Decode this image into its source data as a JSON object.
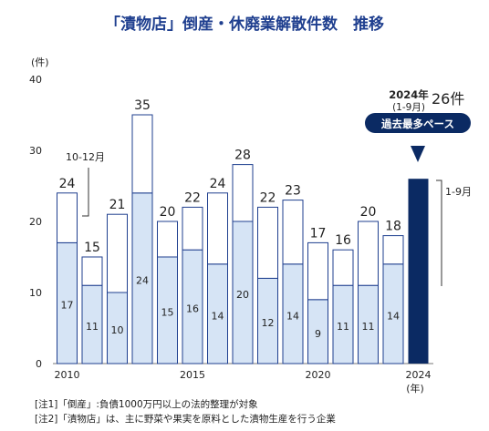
{
  "title": "「漬物店」倒産・休廃業解散件数　推移",
  "chart_data": {
    "type": "bar",
    "categories": [
      "2010",
      "2011",
      "2012",
      "2013",
      "2014",
      "2015",
      "2016",
      "2017",
      "2018",
      "2019",
      "2020",
      "2021",
      "2022",
      "2023",
      "2024"
    ],
    "x_tick_labels": [
      "2010",
      "2015",
      "2020",
      "2024"
    ],
    "x_unit": "(年)",
    "y_unit": "(件)",
    "ylim": [
      0,
      40
    ],
    "y_ticks": [
      0,
      10,
      20,
      30,
      40
    ],
    "series": [
      {
        "name": "倒産",
        "color": "#d6e4f5",
        "values": [
          17,
          11,
          10,
          24,
          15,
          16,
          14,
          20,
          12,
          14,
          9,
          11,
          11,
          14,
          null
        ]
      },
      {
        "name": "休廃業解散",
        "color": "#ffffff",
        "values": [
          7,
          4,
          11,
          11,
          5,
          6,
          10,
          8,
          10,
          9,
          8,
          5,
          9,
          4,
          null
        ]
      }
    ],
    "totals": [
      24,
      15,
      21,
      35,
      20,
      22,
      24,
      28,
      22,
      23,
      17,
      16,
      20,
      18,
      26
    ],
    "bar_2024": {
      "value": 26,
      "color": "#0b2a63"
    },
    "annotations": {
      "note_2010": "10-12月",
      "note_2024_period": "1-9月",
      "header_2024": "2024年",
      "header_2024_sub": "(1-9月)",
      "value_2024": "26件",
      "badge": "過去最多ペース"
    },
    "grid": false
  },
  "notes": [
    "[注1]「倒産」:負債1000万円以上の法的整理が対象",
    "[注2]「漬物店」は、主に野菜や果実を原料とした漬物生産を行う企業"
  ]
}
